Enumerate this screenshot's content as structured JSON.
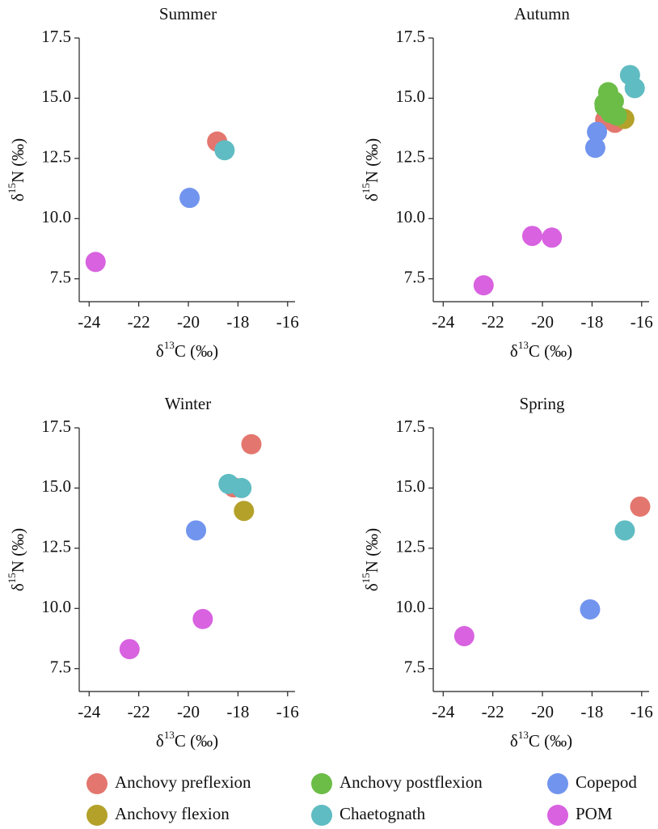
{
  "chart_data": [
    {
      "type": "scatter",
      "title": "Summer",
      "x_label": [
        "δ",
        "13",
        "C (‰)"
      ],
      "y_label": [
        "δ",
        "15",
        "N (‰)"
      ],
      "xlim": [
        -24.4,
        -15.7
      ],
      "ylim": [
        6.55,
        17.5
      ],
      "xticks": [
        -24,
        -22,
        -20,
        -18,
        -16
      ],
      "yticks": [
        7.5,
        {
          "value": 10,
          "label": "10.0"
        },
        12.5,
        {
          "value": 15,
          "label": "15.0"
        },
        17.5
      ],
      "series": [
        {
          "name": "Anchovy preflexion",
          "color": "#e3766e",
          "x": [
            -18.84
          ],
          "values": [
            13.2
          ]
        },
        {
          "name": "Chaetognath",
          "color": "#5fbcc2",
          "x": [
            -18.54
          ],
          "values": [
            12.84
          ]
        },
        {
          "name": "Copepod",
          "color": "#7194ee",
          "x": [
            -19.95
          ],
          "values": [
            10.86
          ]
        },
        {
          "name": "POM",
          "color": "#d862e0",
          "x": [
            -23.74
          ],
          "values": [
            8.2
          ]
        }
      ]
    },
    {
      "type": "scatter",
      "title": "Autumn",
      "x_label": [
        "δ",
        "13",
        "C (‰)"
      ],
      "y_label": [
        "δ",
        "15",
        "N (‰)"
      ],
      "xlim": [
        -24.4,
        -15.7
      ],
      "ylim": [
        6.55,
        17.5
      ],
      "xticks": [
        -24,
        -22,
        -20,
        -18,
        -16
      ],
      "yticks": [
        7.5,
        {
          "value": 10,
          "label": "10.0"
        },
        12.5,
        {
          "value": 15,
          "label": "15.0"
        },
        17.5
      ],
      "series": [
        {
          "name": "Anchovy preflexion",
          "color": "#e3766e",
          "x": [
            -17.47,
            -17.08
          ],
          "values": [
            14.11,
            13.98
          ]
        },
        {
          "name": "Anchovy flexion",
          "color": "#b3a12a",
          "x": [
            -16.7
          ],
          "values": [
            14.14
          ]
        },
        {
          "name": "Anchovy postflexion",
          "color": "#6cbd47",
          "x": [
            -17.35,
            -17.5,
            -17.12,
            -17.25,
            -17.0,
            -17.49
          ],
          "values": [
            15.25,
            14.78,
            14.88,
            14.38,
            14.28,
            14.65
          ]
        },
        {
          "name": "Chaetognath",
          "color": "#5fbcc2",
          "x": [
            -16.47,
            -16.28
          ],
          "values": [
            15.96,
            15.42
          ]
        },
        {
          "name": "Copepod",
          "color": "#7194ee",
          "x": [
            -17.8,
            -17.87
          ],
          "values": [
            13.6,
            12.94
          ]
        },
        {
          "name": "POM",
          "color": "#d862e0",
          "x": [
            -20.41,
            -19.62,
            -22.37
          ],
          "values": [
            9.28,
            9.21,
            7.23
          ]
        }
      ]
    },
    {
      "type": "scatter",
      "title": "Winter",
      "x_label": [
        "δ",
        "13",
        "C (‰)"
      ],
      "y_label": [
        "δ",
        "15",
        "N (‰)"
      ],
      "xlim": [
        -24.4,
        -15.7
      ],
      "ylim": [
        6.55,
        17.5
      ],
      "xticks": [
        -24,
        -22,
        -20,
        -18,
        -16
      ],
      "yticks": [
        7.5,
        {
          "value": 10,
          "label": "10.0"
        },
        12.5,
        {
          "value": 15,
          "label": "15.0"
        },
        17.5
      ],
      "series": [
        {
          "name": "Anchovy preflexion",
          "color": "#e3766e",
          "x": [
            -17.46,
            -18.18
          ],
          "values": [
            16.82,
            15.03
          ]
        },
        {
          "name": "Anchovy flexion",
          "color": "#b3a12a",
          "x": [
            -17.76
          ],
          "values": [
            14.05
          ]
        },
        {
          "name": "Chaetognath",
          "color": "#5fbcc2",
          "x": [
            -18.38,
            -17.86
          ],
          "values": [
            15.17,
            15.0
          ]
        },
        {
          "name": "Copepod",
          "color": "#7194ee",
          "x": [
            -19.69
          ],
          "values": [
            13.24
          ]
        },
        {
          "name": "POM",
          "color": "#d862e0",
          "x": [
            -19.42,
            -22.37
          ],
          "values": [
            9.56,
            8.31
          ]
        }
      ]
    },
    {
      "type": "scatter",
      "title": "Spring",
      "x_label": [
        "δ",
        "13",
        "C (‰)"
      ],
      "y_label": [
        "δ",
        "15",
        "N (‰)"
      ],
      "xlim": [
        -24.4,
        -15.7
      ],
      "ylim": [
        6.55,
        17.5
      ],
      "xticks": [
        -24,
        -22,
        -20,
        -18,
        -16
      ],
      "yticks": [
        7.5,
        {
          "value": 10,
          "label": "10.0"
        },
        12.5,
        {
          "value": 15,
          "label": "15.0"
        },
        17.5
      ],
      "series": [
        {
          "name": "Anchovy preflexion",
          "color": "#e3766e",
          "x": [
            -16.06
          ],
          "values": [
            14.23
          ]
        },
        {
          "name": "Chaetognath",
          "color": "#5fbcc2",
          "x": [
            -16.68
          ],
          "values": [
            13.24
          ]
        },
        {
          "name": "Copepod",
          "color": "#7194ee",
          "x": [
            -18.08
          ],
          "values": [
            9.96
          ]
        },
        {
          "name": "POM",
          "color": "#d862e0",
          "x": [
            -23.15
          ],
          "values": [
            8.85
          ]
        }
      ]
    }
  ]
}
